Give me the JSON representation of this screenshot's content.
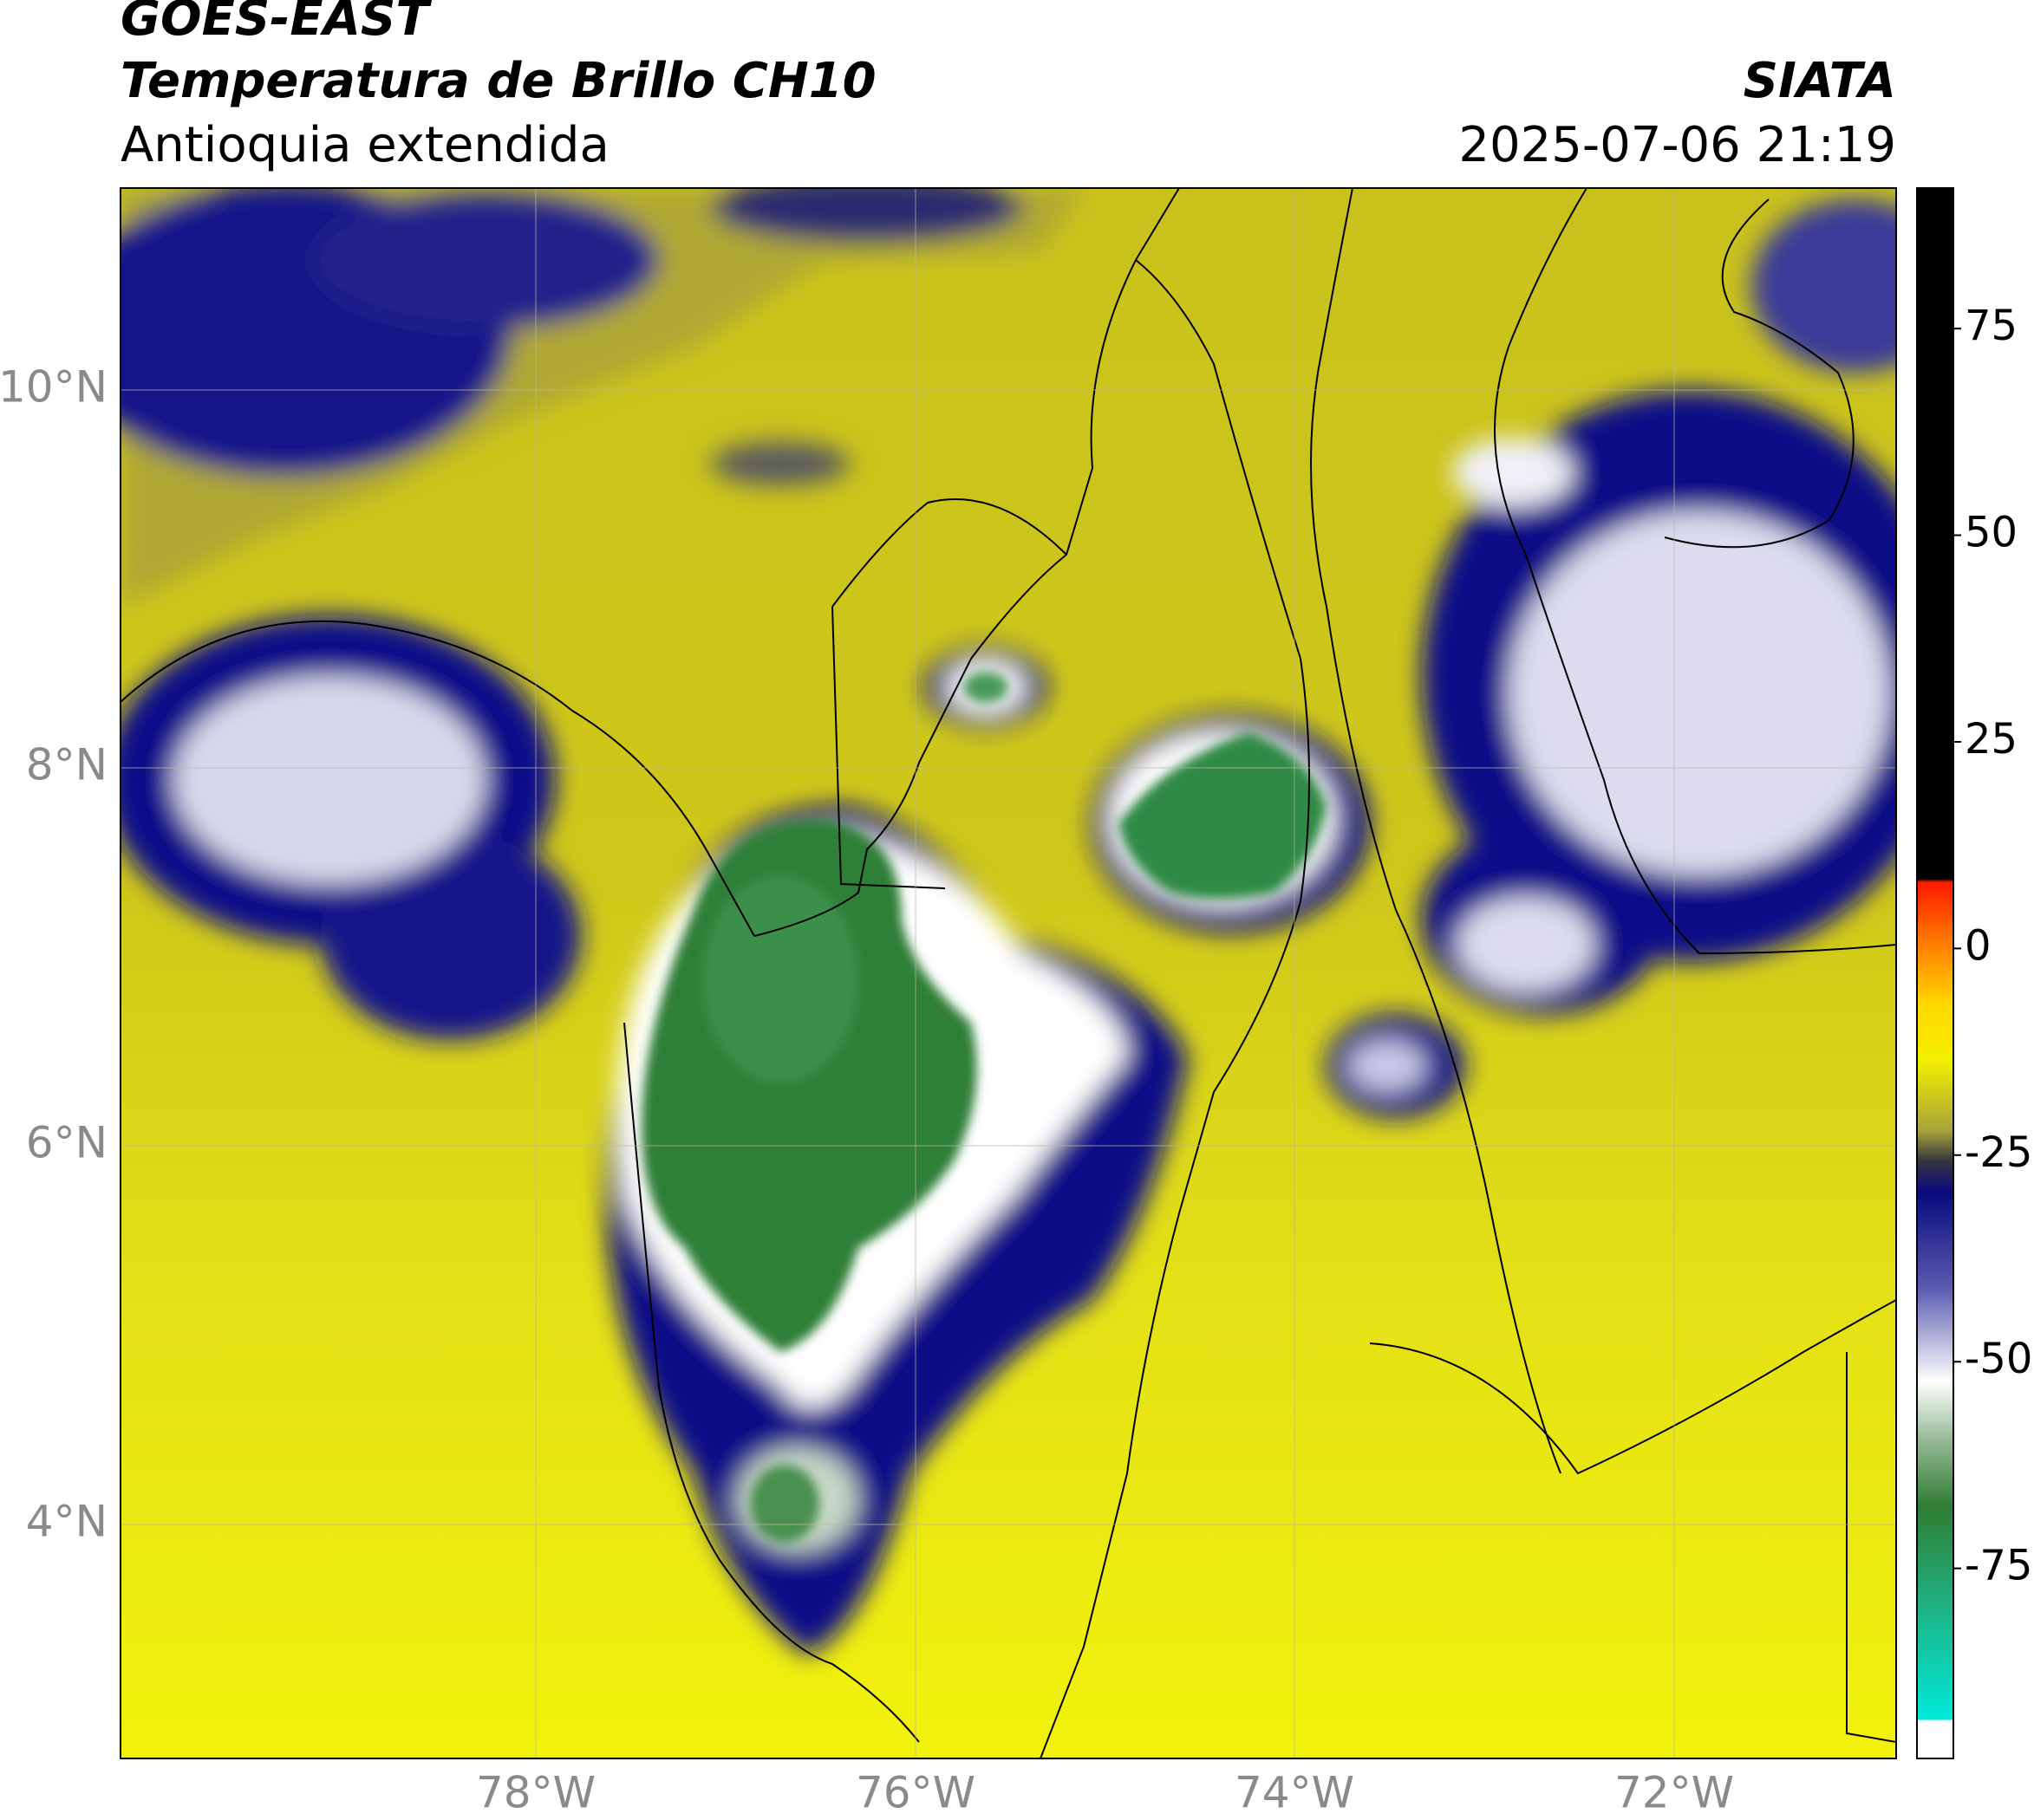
{
  "header": {
    "satellite": "GOES-EAST",
    "product": "Temperatura de Brillo CH10",
    "region": "Antioquia extendida",
    "agency": "SIATA",
    "datetime": "2025-07-06 21:19"
  },
  "map": {
    "lat_labels": [
      "10°N",
      "8°N",
      "6°N",
      "4°N"
    ],
    "lon_labels": [
      "78°W",
      "76°W",
      "74°W",
      "72°W"
    ]
  },
  "colorbar": {
    "range": [
      -98,
      92
    ],
    "ticks": [
      75,
      50,
      25,
      0,
      -25,
      -50,
      -75
    ]
  }
}
